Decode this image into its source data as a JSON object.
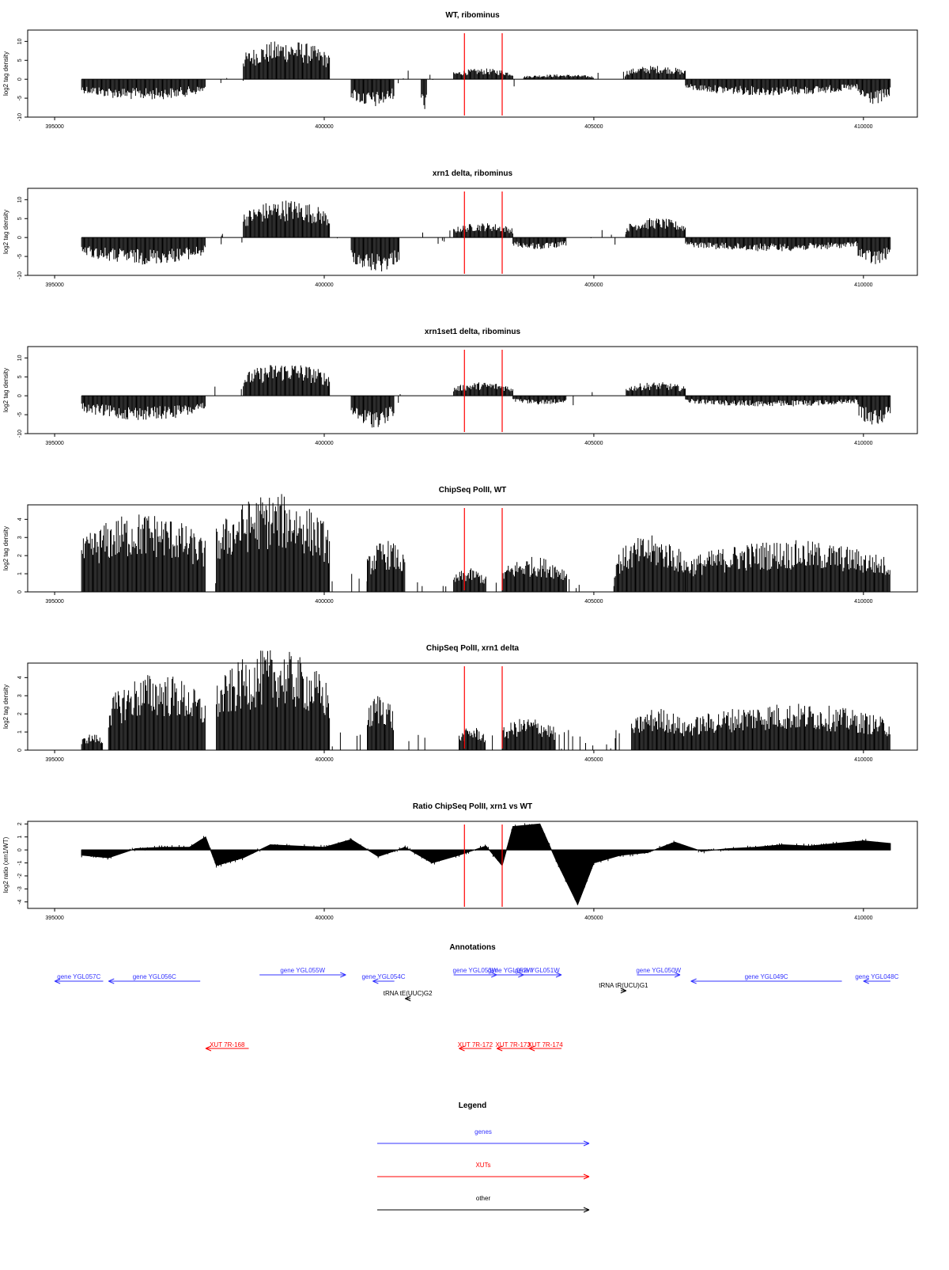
{
  "chart_data": [
    {
      "type": "bar",
      "title": "WT, ribominus",
      "xlabel": "",
      "ylabel": "log2 tag density",
      "xlim": [
        395000,
        410500
      ],
      "ylim": [
        -10,
        13
      ],
      "yticks": [
        "-10",
        "-5",
        "0",
        "5",
        "10"
      ],
      "xticks": [
        "395000",
        "400000",
        "405000",
        "410000"
      ],
      "markers": [
        402600,
        403300
      ],
      "segments": [
        {
          "x": [
            395500,
            397800
          ],
          "value": -4.2
        },
        {
          "x": [
            398500,
            400100
          ],
          "value": 8.0
        },
        {
          "x": [
            400500,
            401300
          ],
          "value": -5.8
        },
        {
          "x": [
            401800,
            401900
          ],
          "value": -6.5
        },
        {
          "x": [
            402400,
            403500
          ],
          "value": 2.2
        },
        {
          "x": [
            403700,
            405000
          ],
          "value": 1.0
        },
        {
          "x": [
            405600,
            406700
          ],
          "value": 2.8
        },
        {
          "x": [
            406700,
            409900
          ],
          "value": -3.3
        },
        {
          "x": [
            409900,
            410500
          ],
          "value": -5.2
        }
      ]
    },
    {
      "type": "bar",
      "title": "xrn1 delta, ribominus",
      "xlabel": "",
      "ylabel": "log2 tag density",
      "xlim": [
        395000,
        410500
      ],
      "ylim": [
        -10,
        13
      ],
      "yticks": [
        "-10",
        "-5",
        "0",
        "5",
        "10"
      ],
      "xticks": [
        "395000",
        "400000",
        "405000",
        "410000"
      ],
      "markers": [
        402600,
        403300
      ],
      "segments": [
        {
          "x": [
            395500,
            397800
          ],
          "value": -5.5
        },
        {
          "x": [
            398500,
            400100
          ],
          "value": 7.8
        },
        {
          "x": [
            400500,
            401400
          ],
          "value": -7.2
        },
        {
          "x": [
            402400,
            403500
          ],
          "value": 3.0
        },
        {
          "x": [
            403500,
            404500
          ],
          "value": -2.5
        },
        {
          "x": [
            405600,
            406700
          ],
          "value": 4.0
        },
        {
          "x": [
            406700,
            409900
          ],
          "value": -2.8
        },
        {
          "x": [
            409900,
            410500
          ],
          "value": -5.8
        }
      ]
    },
    {
      "type": "bar",
      "title": "xrn1set1 delta, ribominus",
      "xlabel": "",
      "ylabel": "log2 tag density",
      "xlim": [
        395000,
        410500
      ],
      "ylim": [
        -10,
        13
      ],
      "yticks": [
        "-10",
        "-5",
        "0",
        "5",
        "10"
      ],
      "xticks": [
        "395000",
        "400000",
        "405000",
        "410000"
      ],
      "markers": [
        402600,
        403300
      ],
      "segments": [
        {
          "x": [
            395500,
            397800
          ],
          "value": -5.0
        },
        {
          "x": [
            398500,
            400100
          ],
          "value": 6.8
        },
        {
          "x": [
            400500,
            401300
          ],
          "value": -6.5
        },
        {
          "x": [
            402400,
            403500
          ],
          "value": 2.8
        },
        {
          "x": [
            403500,
            404500
          ],
          "value": -1.8
        },
        {
          "x": [
            405600,
            406700
          ],
          "value": 2.8
        },
        {
          "x": [
            406700,
            409900
          ],
          "value": -2.2
        },
        {
          "x": [
            409900,
            410500
          ],
          "value": -6.0
        }
      ]
    },
    {
      "type": "bar",
      "title": "ChipSeq PolII, WT",
      "xlabel": "",
      "ylabel": "log2 tag density",
      "xlim": [
        395000,
        410500
      ],
      "ylim": [
        0,
        4.8
      ],
      "yticks": [
        "0",
        "1",
        "2",
        "3",
        "4"
      ],
      "xticks": [
        "395000",
        "400000",
        "405000",
        "410000"
      ],
      "markers": [
        402600,
        403300
      ],
      "segments": [
        {
          "x": [
            395500,
            397800
          ],
          "value": 3.4
        },
        {
          "x": [
            398000,
            400100
          ],
          "value": 4.2
        },
        {
          "x": [
            400800,
            401500
          ],
          "value": 2.2
        },
        {
          "x": [
            402400,
            403000
          ],
          "value": 1.0
        },
        {
          "x": [
            403300,
            404500
          ],
          "value": 1.5
        },
        {
          "x": [
            405400,
            406700
          ],
          "value": 2.4
        },
        {
          "x": [
            406700,
            410500
          ],
          "value": 2.2
        }
      ]
    },
    {
      "type": "bar",
      "title": "ChipSeq PolII, xrn1 delta",
      "xlabel": "",
      "ylabel": "log2 tag density",
      "xlim": [
        395000,
        410500
      ],
      "ylim": [
        0,
        4.8
      ],
      "yticks": [
        "0",
        "1",
        "2",
        "3",
        "4"
      ],
      "xticks": [
        "395000",
        "400000",
        "405000",
        "410000"
      ],
      "markers": [
        402600,
        403300
      ],
      "segments": [
        {
          "x": [
            395500,
            395900
          ],
          "value": 0.7
        },
        {
          "x": [
            396000,
            397800
          ],
          "value": 3.3
        },
        {
          "x": [
            398000,
            400100
          ],
          "value": 4.3
        },
        {
          "x": [
            400800,
            401300
          ],
          "value": 2.5
        },
        {
          "x": [
            402500,
            403000
          ],
          "value": 1.0
        },
        {
          "x": [
            403300,
            404300
          ],
          "value": 1.4
        },
        {
          "x": [
            405700,
            406700
          ],
          "value": 1.8
        },
        {
          "x": [
            406700,
            410500
          ],
          "value": 2.0
        }
      ]
    },
    {
      "type": "area",
      "title": "Ratio ChipSeq PolII, xrn1 vs WT",
      "xlabel": "",
      "ylabel": "log2 ratio (xrn1/WT)",
      "xlim": [
        395000,
        410500
      ],
      "ylim": [
        -4.5,
        2.2
      ],
      "yticks": [
        "-4",
        "-3",
        "-2",
        "-1",
        "0",
        "1",
        "2"
      ],
      "xticks": [
        "395000",
        "400000",
        "405000",
        "410000"
      ],
      "markers": [
        402600,
        403300
      ],
      "x": [
        395500,
        396000,
        396500,
        397000,
        397500,
        397800,
        398000,
        398500,
        399000,
        399500,
        400000,
        400500,
        401000,
        401500,
        402000,
        402500,
        403000,
        403300,
        403500,
        404000,
        404300,
        404700,
        405000,
        405500,
        406000,
        406500,
        407000,
        407500,
        408000,
        408500,
        409000,
        409500,
        410000,
        410500
      ],
      "y": [
        -0.4,
        -0.6,
        0.1,
        0.2,
        0.2,
        1.0,
        -1.2,
        -0.6,
        0.4,
        0.3,
        0.2,
        0.8,
        -0.5,
        0.2,
        -1.0,
        -0.4,
        0.3,
        -1.2,
        1.8,
        2.0,
        -0.8,
        -4.2,
        -1.0,
        -0.4,
        -0.2,
        0.6,
        -0.1,
        0.1,
        0.2,
        0.4,
        0.3,
        0.5,
        0.7,
        0.5
      ]
    }
  ],
  "annotations": {
    "title": "Annotations",
    "genes": [
      {
        "label": "gene YGL057C",
        "x1": 395000,
        "x2": 395900,
        "dir": "left",
        "row": 1
      },
      {
        "label": "gene YGL056C",
        "x1": 396000,
        "x2": 397700,
        "dir": "left",
        "row": 1
      },
      {
        "label": "gene YGL055W",
        "x1": 398800,
        "x2": 400400,
        "dir": "right",
        "row": 0
      },
      {
        "label": "gene YGL054C",
        "x1": 400900,
        "x2": 401300,
        "dir": "left",
        "row": 1
      },
      {
        "label": "gene YGL053W",
        "x1": 402400,
        "x2": 403200,
        "dir": "right",
        "row": 0
      },
      {
        "label": "gene YGL052W",
        "x1": 403200,
        "x2": 403700,
        "dir": "right",
        "row": 0
      },
      {
        "label": "gene YGL051W",
        "x1": 403500,
        "x2": 404400,
        "dir": "right",
        "row": 0
      },
      {
        "label": "gene YGL050W",
        "x1": 405800,
        "x2": 406600,
        "dir": "right",
        "row": 0
      },
      {
        "label": "gene YGL049C",
        "x1": 406800,
        "x2": 409600,
        "dir": "left",
        "row": 1
      },
      {
        "label": "gene YGL048C",
        "x1": 410000,
        "x2": 410500,
        "dir": "left",
        "row": 1
      }
    ],
    "other": [
      {
        "label": "tRNA tE(UUC)G2",
        "x1": 401500,
        "x2": 401600,
        "dir": "left"
      },
      {
        "label": "tRNA tR(UCU)G1",
        "x1": 405500,
        "x2": 405600,
        "dir": "right"
      }
    ],
    "xuts": [
      {
        "label": "XUT 7R-168",
        "x1": 397800,
        "x2": 398600,
        "dir": "left"
      },
      {
        "label": "XUT 7R-172",
        "x1": 402500,
        "x2": 403100,
        "dir": "left"
      },
      {
        "label": "XUT 7R-173",
        "x1": 403200,
        "x2": 403800,
        "dir": "left"
      },
      {
        "label": "XUT 7R-174",
        "x1": 403800,
        "x2": 404400,
        "dir": "left"
      }
    ]
  },
  "legend": {
    "title": "Legend",
    "items": [
      {
        "label": "genes",
        "color": "#3333ff"
      },
      {
        "label": "XUTs",
        "color": "#ff0000"
      },
      {
        "label": "other",
        "color": "#000000"
      }
    ]
  },
  "colors": {
    "marker": "#ff0000",
    "gene": "#3333ff",
    "xut": "#ff0000",
    "other": "#000000",
    "bars": "#000000"
  }
}
